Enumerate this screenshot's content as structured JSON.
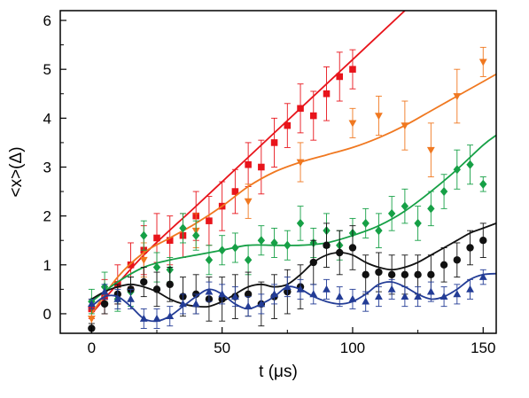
{
  "chart_data": {
    "type": "scatter",
    "title": "",
    "xlabel": "t (μs)",
    "ylabel": "<x>(Δ)",
    "xlim": [
      -12,
      155
    ],
    "ylim": [
      -0.4,
      6.2
    ],
    "xticks": [
      0,
      50,
      100,
      150
    ],
    "yticks": [
      0,
      1,
      2,
      3,
      4,
      5,
      6
    ],
    "xtick_labels": [
      "0",
      "50",
      "100",
      "150"
    ],
    "ytick_labels": [
      "0",
      "1",
      "2",
      "3",
      "4",
      "5",
      "6"
    ],
    "grid": false,
    "series": [
      {
        "color": "#e8141b",
        "marker": "square",
        "points": [
          [
            0,
            0.1
          ],
          [
            5,
            0.35
          ],
          [
            10,
            0.6
          ],
          [
            15,
            1.0
          ],
          [
            20,
            1.3
          ],
          [
            25,
            1.55
          ],
          [
            30,
            1.5
          ],
          [
            35,
            1.6
          ],
          [
            40,
            2.0
          ],
          [
            45,
            1.9
          ],
          [
            50,
            2.2
          ],
          [
            55,
            2.5
          ],
          [
            60,
            3.05
          ],
          [
            65,
            3.0
          ],
          [
            70,
            3.5
          ],
          [
            75,
            3.85
          ],
          [
            80,
            4.2
          ],
          [
            85,
            4.05
          ],
          [
            90,
            4.5
          ],
          [
            95,
            4.85
          ],
          [
            100,
            5.0
          ]
        ],
        "errors": [
          0.2,
          0.35,
          0.4,
          0.45,
          0.5,
          0.5,
          0.5,
          0.45,
          0.5,
          0.5,
          0.5,
          0.45,
          0.45,
          0.55,
          0.5,
          0.45,
          0.5,
          0.5,
          0.55,
          0.5,
          0.4
        ],
        "fit": [
          [
            0,
            0.0
          ],
          [
            20,
            1.2
          ],
          [
            40,
            2.2
          ],
          [
            60,
            3.2
          ],
          [
            80,
            4.2
          ],
          [
            100,
            5.2
          ],
          [
            120,
            6.2
          ]
        ]
      },
      {
        "color": "#f07820",
        "marker": "triangle-down",
        "points": [
          [
            0,
            -0.1
          ],
          [
            20,
            1.1
          ],
          [
            40,
            1.7
          ],
          [
            60,
            2.3
          ],
          [
            80,
            3.1
          ],
          [
            100,
            3.9
          ],
          [
            110,
            4.05
          ],
          [
            120,
            3.85
          ],
          [
            130,
            3.35
          ],
          [
            140,
            4.45
          ],
          [
            150,
            5.15
          ]
        ],
        "errors": [
          0.2,
          0.35,
          0.35,
          0.35,
          0.4,
          0.3,
          0.4,
          0.5,
          0.55,
          0.55,
          0.3
        ],
        "fit": [
          [
            0,
            0.0
          ],
          [
            10,
            0.75
          ],
          [
            20,
            1.25
          ],
          [
            30,
            1.55
          ],
          [
            40,
            1.85
          ],
          [
            50,
            2.2
          ],
          [
            60,
            2.6
          ],
          [
            70,
            2.9
          ],
          [
            80,
            3.1
          ],
          [
            90,
            3.25
          ],
          [
            100,
            3.4
          ],
          [
            110,
            3.6
          ],
          [
            120,
            3.85
          ],
          [
            130,
            4.15
          ],
          [
            140,
            4.45
          ],
          [
            150,
            4.75
          ],
          [
            155,
            4.9
          ]
        ]
      },
      {
        "color": "#16a046",
        "marker": "diamond",
        "points": [
          [
            0,
            0.25
          ],
          [
            5,
            0.55
          ],
          [
            10,
            0.3
          ],
          [
            15,
            0.45
          ],
          [
            20,
            1.6
          ],
          [
            25,
            0.95
          ],
          [
            30,
            0.9
          ],
          [
            35,
            1.75
          ],
          [
            40,
            1.6
          ],
          [
            45,
            1.1
          ],
          [
            50,
            1.3
          ],
          [
            55,
            1.35
          ],
          [
            60,
            1.1
          ],
          [
            65,
            1.5
          ],
          [
            70,
            1.45
          ],
          [
            75,
            1.4
          ],
          [
            80,
            1.85
          ],
          [
            85,
            1.45
          ],
          [
            90,
            1.7
          ],
          [
            95,
            1.4
          ],
          [
            100,
            1.65
          ],
          [
            105,
            1.85
          ],
          [
            110,
            1.7
          ],
          [
            115,
            2.05
          ],
          [
            120,
            2.2
          ],
          [
            125,
            1.85
          ],
          [
            130,
            2.15
          ],
          [
            135,
            2.5
          ],
          [
            140,
            2.95
          ],
          [
            145,
            3.05
          ],
          [
            150,
            2.65
          ]
        ],
        "errors": [
          0.25,
          0.3,
          0.25,
          0.3,
          0.3,
          0.3,
          0.25,
          0.3,
          0.3,
          0.3,
          0.3,
          0.3,
          0.3,
          0.3,
          0.3,
          0.3,
          0.35,
          0.3,
          0.35,
          0.3,
          0.3,
          0.3,
          0.35,
          0.35,
          0.35,
          0.35,
          0.35,
          0.35,
          0.4,
          0.4,
          0.15
        ],
        "fit": [
          [
            0,
            0.25
          ],
          [
            10,
            0.65
          ],
          [
            20,
            0.95
          ],
          [
            30,
            1.1
          ],
          [
            40,
            1.2
          ],
          [
            50,
            1.3
          ],
          [
            60,
            1.4
          ],
          [
            70,
            1.4
          ],
          [
            80,
            1.4
          ],
          [
            90,
            1.45
          ],
          [
            100,
            1.6
          ],
          [
            110,
            1.8
          ],
          [
            120,
            2.1
          ],
          [
            130,
            2.5
          ],
          [
            140,
            2.95
          ],
          [
            150,
            3.45
          ],
          [
            155,
            3.65
          ]
        ]
      },
      {
        "color": "#111111",
        "marker": "circle",
        "points": [
          [
            0,
            -0.3
          ],
          [
            5,
            0.2
          ],
          [
            10,
            0.4
          ],
          [
            15,
            0.5
          ],
          [
            20,
            0.65
          ],
          [
            25,
            0.5
          ],
          [
            30,
            0.6
          ],
          [
            35,
            0.35
          ],
          [
            40,
            0.4
          ],
          [
            45,
            0.3
          ],
          [
            50,
            0.3
          ],
          [
            55,
            0.35
          ],
          [
            60,
            0.4
          ],
          [
            65,
            0.2
          ],
          [
            70,
            0.35
          ],
          [
            75,
            0.45
          ],
          [
            80,
            0.55
          ],
          [
            85,
            1.05
          ],
          [
            90,
            1.4
          ],
          [
            95,
            1.25
          ],
          [
            100,
            1.35
          ],
          [
            105,
            0.8
          ],
          [
            110,
            0.85
          ],
          [
            115,
            0.8
          ],
          [
            120,
            0.8
          ],
          [
            125,
            0.8
          ],
          [
            130,
            0.8
          ],
          [
            135,
            1.0
          ],
          [
            140,
            1.1
          ],
          [
            145,
            1.35
          ],
          [
            150,
            1.5
          ]
        ],
        "errors": [
          0.1,
          0.2,
          0.2,
          0.25,
          0.3,
          0.35,
          0.35,
          0.4,
          0.4,
          0.45,
          0.45,
          0.45,
          0.45,
          0.45,
          0.45,
          0.45,
          0.45,
          0.45,
          0.45,
          0.45,
          0.45,
          0.4,
          0.4,
          0.4,
          0.4,
          0.4,
          0.4,
          0.35,
          0.35,
          0.35,
          0.35
        ],
        "fit": [
          [
            0,
            0.3
          ],
          [
            5,
            0.45
          ],
          [
            10,
            0.55
          ],
          [
            15,
            0.6
          ],
          [
            20,
            0.55
          ],
          [
            25,
            0.45
          ],
          [
            30,
            0.3
          ],
          [
            35,
            0.2
          ],
          [
            40,
            0.15
          ],
          [
            45,
            0.15
          ],
          [
            50,
            0.25
          ],
          [
            55,
            0.4
          ],
          [
            60,
            0.55
          ],
          [
            65,
            0.6
          ],
          [
            70,
            0.55
          ],
          [
            75,
            0.6
          ],
          [
            80,
            0.8
          ],
          [
            85,
            1.05
          ],
          [
            90,
            1.2
          ],
          [
            95,
            1.25
          ],
          [
            100,
            1.2
          ],
          [
            105,
            1.05
          ],
          [
            110,
            0.95
          ],
          [
            115,
            0.9
          ],
          [
            120,
            0.95
          ],
          [
            125,
            1.05
          ],
          [
            130,
            1.2
          ],
          [
            135,
            1.35
          ],
          [
            140,
            1.5
          ],
          [
            145,
            1.65
          ],
          [
            150,
            1.75
          ],
          [
            155,
            1.85
          ]
        ]
      },
      {
        "color": "#233c96",
        "marker": "triangle-up",
        "points": [
          [
            0,
            0.2
          ],
          [
            5,
            0.45
          ],
          [
            10,
            0.3
          ],
          [
            15,
            0.3
          ],
          [
            20,
            -0.1
          ],
          [
            25,
            -0.1
          ],
          [
            30,
            -0.05
          ],
          [
            35,
            0.2
          ],
          [
            40,
            0.2
          ],
          [
            45,
            0.45
          ],
          [
            50,
            0.4
          ],
          [
            55,
            0.35
          ],
          [
            60,
            0.15
          ],
          [
            65,
            0.2
          ],
          [
            70,
            0.4
          ],
          [
            75,
            0.55
          ],
          [
            80,
            0.5
          ],
          [
            85,
            0.4
          ],
          [
            90,
            0.5
          ],
          [
            95,
            0.35
          ],
          [
            100,
            0.3
          ],
          [
            105,
            0.25
          ],
          [
            110,
            0.35
          ],
          [
            115,
            0.5
          ],
          [
            120,
            0.35
          ],
          [
            125,
            0.35
          ],
          [
            130,
            0.45
          ],
          [
            135,
            0.35
          ],
          [
            140,
            0.4
          ],
          [
            145,
            0.5
          ],
          [
            150,
            0.75
          ]
        ],
        "errors": [
          0.1,
          0.15,
          0.2,
          0.2,
          0.2,
          0.2,
          0.2,
          0.2,
          0.2,
          0.2,
          0.2,
          0.2,
          0.2,
          0.2,
          0.2,
          0.2,
          0.2,
          0.2,
          0.2,
          0.2,
          0.2,
          0.2,
          0.2,
          0.2,
          0.2,
          0.2,
          0.2,
          0.2,
          0.2,
          0.2,
          0.15
        ],
        "fit": [
          [
            0,
            0.15
          ],
          [
            5,
            0.35
          ],
          [
            10,
            0.35
          ],
          [
            15,
            0.15
          ],
          [
            20,
            -0.1
          ],
          [
            25,
            -0.15
          ],
          [
            30,
            -0.05
          ],
          [
            35,
            0.15
          ],
          [
            40,
            0.35
          ],
          [
            45,
            0.5
          ],
          [
            50,
            0.4
          ],
          [
            55,
            0.2
          ],
          [
            60,
            0.1
          ],
          [
            65,
            0.2
          ],
          [
            70,
            0.35
          ],
          [
            75,
            0.55
          ],
          [
            80,
            0.5
          ],
          [
            85,
            0.35
          ],
          [
            90,
            0.25
          ],
          [
            95,
            0.2
          ],
          [
            100,
            0.25
          ],
          [
            105,
            0.4
          ],
          [
            110,
            0.6
          ],
          [
            115,
            0.65
          ],
          [
            120,
            0.55
          ],
          [
            125,
            0.4
          ],
          [
            130,
            0.3
          ],
          [
            135,
            0.35
          ],
          [
            140,
            0.5
          ],
          [
            145,
            0.7
          ],
          [
            150,
            0.8
          ],
          [
            155,
            0.82
          ]
        ]
      }
    ]
  }
}
